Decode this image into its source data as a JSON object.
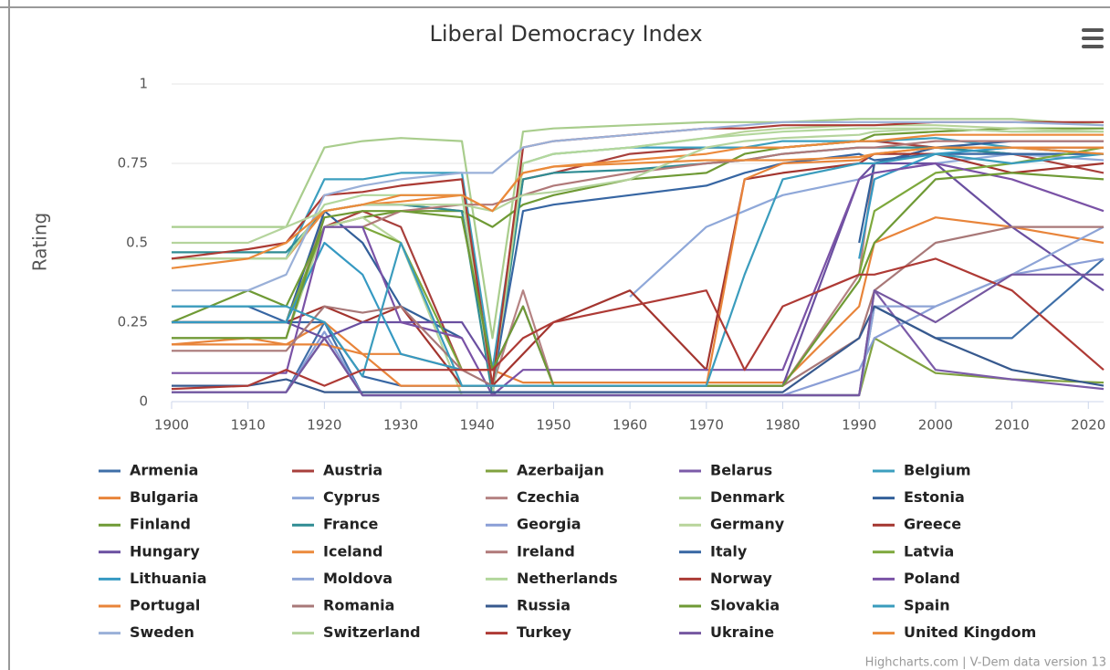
{
  "chart_data": {
    "type": "line",
    "title": "Liberal Democracy Index",
    "y_label": "Rating",
    "credits": "Highcharts.com | V-Dem data version 13",
    "x": [
      1900,
      1910,
      1915,
      1920,
      1925,
      1930,
      1938,
      1942,
      1946,
      1950,
      1960,
      1970,
      1975,
      1980,
      1990,
      1992,
      2000,
      2010,
      2022
    ],
    "xlim": [
      1900,
      2022
    ],
    "xticks": [
      1900,
      1910,
      1920,
      1930,
      1940,
      1950,
      1960,
      1970,
      1980,
      1990,
      2000,
      2010,
      2020
    ],
    "ylim": [
      0,
      1
    ],
    "yticks": [
      0,
      0.25,
      0.5,
      0.75,
      1
    ],
    "grid": true,
    "legend": "bottom",
    "series": [
      {
        "name": "Armenia",
        "color": "#3f6fa8",
        "values": [
          0.03,
          0.03,
          0.03,
          0.25,
          0.02,
          0.02,
          0.02,
          0.02,
          0.02,
          0.02,
          0.02,
          0.02,
          0.02,
          0.02,
          0.02,
          0.3,
          0.2,
          0.2,
          0.45
        ]
      },
      {
        "name": "Austria",
        "color": "#a8403c",
        "values": [
          0.25,
          0.25,
          0.25,
          0.55,
          0.6,
          0.55,
          0.1,
          0.1,
          0.7,
          0.72,
          0.78,
          0.8,
          0.8,
          0.8,
          0.82,
          0.82,
          0.8,
          0.78,
          0.72
        ]
      },
      {
        "name": "Azerbaijan",
        "color": "#80a23f",
        "values": [
          0.03,
          0.03,
          0.03,
          0.2,
          0.02,
          0.02,
          0.02,
          0.02,
          0.02,
          0.02,
          0.02,
          0.02,
          0.02,
          0.02,
          0.02,
          0.2,
          0.09,
          0.07,
          0.06
        ]
      },
      {
        "name": "Belarus",
        "color": "#7b5ba8",
        "values": [
          0.03,
          0.03,
          0.03,
          0.2,
          0.02,
          0.02,
          0.02,
          0.02,
          0.02,
          0.02,
          0.02,
          0.02,
          0.02,
          0.02,
          0.02,
          0.35,
          0.1,
          0.07,
          0.04
        ]
      },
      {
        "name": "Belgium",
        "color": "#3c9fbf",
        "values": [
          0.45,
          0.45,
          0.45,
          0.7,
          0.7,
          0.72,
          0.72,
          0.1,
          0.75,
          0.78,
          0.8,
          0.8,
          0.8,
          0.82,
          0.82,
          0.82,
          0.83,
          0.8,
          0.8
        ]
      },
      {
        "name": "Bulgaria",
        "color": "#e8843a",
        "values": [
          0.18,
          0.18,
          0.18,
          0.25,
          0.15,
          0.15,
          0.1,
          0.1,
          0.06,
          0.06,
          0.06,
          0.06,
          0.06,
          0.06,
          0.3,
          0.5,
          0.58,
          0.55,
          0.5
        ]
      },
      {
        "name": "Cyprus",
        "color": "#8fa8d9",
        "values": [
          null,
          null,
          null,
          null,
          null,
          null,
          null,
          null,
          null,
          null,
          0.33,
          0.55,
          0.6,
          0.65,
          0.7,
          0.72,
          0.75,
          0.78,
          0.76
        ]
      },
      {
        "name": "Czechia",
        "color": "#b58383",
        "values": [
          0.2,
          0.2,
          0.2,
          0.6,
          0.62,
          0.62,
          0.6,
          0.05,
          0.35,
          0.05,
          0.05,
          0.05,
          0.05,
          0.05,
          0.4,
          0.75,
          0.8,
          0.8,
          0.8
        ]
      },
      {
        "name": "Denmark",
        "color": "#a9cd8d",
        "values": [
          0.55,
          0.55,
          0.55,
          0.8,
          0.82,
          0.83,
          0.82,
          0.2,
          0.85,
          0.86,
          0.87,
          0.88,
          0.88,
          0.88,
          0.89,
          0.89,
          0.89,
          0.89,
          0.87
        ]
      },
      {
        "name": "Estonia",
        "color": "#33609a",
        "values": [
          0.25,
          0.25,
          0.25,
          0.6,
          0.5,
          0.3,
          0.2,
          null,
          null,
          null,
          null,
          null,
          null,
          null,
          0.5,
          0.75,
          0.8,
          0.82,
          0.82
        ]
      },
      {
        "name": "Finland",
        "color": "#6f9a35",
        "values": [
          0.25,
          0.35,
          0.3,
          0.55,
          0.58,
          0.6,
          0.6,
          0.55,
          0.62,
          0.65,
          0.7,
          0.72,
          0.78,
          0.8,
          0.82,
          0.84,
          0.85,
          0.86,
          0.86
        ]
      },
      {
        "name": "France",
        "color": "#2f8c93",
        "values": [
          0.47,
          0.47,
          0.47,
          0.6,
          0.62,
          0.62,
          0.6,
          0.02,
          0.7,
          0.72,
          0.73,
          0.75,
          0.76,
          0.78,
          0.8,
          0.8,
          0.8,
          0.78,
          0.78
        ]
      },
      {
        "name": "Georgia",
        "color": "#8a9ed6",
        "values": [
          0.03,
          0.03,
          0.03,
          0.22,
          0.02,
          0.02,
          0.02,
          0.02,
          0.02,
          0.02,
          0.02,
          0.02,
          0.02,
          0.02,
          0.1,
          0.2,
          0.3,
          0.4,
          0.45
        ]
      },
      {
        "name": "Germany",
        "color": "#b8d49a",
        "values": [
          0.2,
          0.2,
          0.2,
          0.55,
          0.58,
          0.5,
          0.02,
          0.02,
          0.75,
          0.78,
          0.8,
          0.83,
          0.85,
          0.86,
          0.87,
          0.87,
          0.87,
          0.86,
          0.85
        ]
      },
      {
        "name": "Greece",
        "color": "#a3352f",
        "values": [
          0.25,
          0.25,
          0.25,
          0.3,
          0.25,
          0.3,
          0.05,
          0.05,
          0.15,
          0.25,
          0.35,
          0.1,
          0.7,
          0.72,
          0.75,
          0.78,
          0.78,
          0.72,
          0.75
        ]
      },
      {
        "name": "Hungary",
        "color": "#6a4fa0",
        "values": [
          0.25,
          0.25,
          0.25,
          0.2,
          0.25,
          0.25,
          0.25,
          0.1,
          0.3,
          0.05,
          0.05,
          0.05,
          0.05,
          0.05,
          0.7,
          0.75,
          0.75,
          0.55,
          0.35
        ]
      },
      {
        "name": "Iceland",
        "color": "#ec8a3c",
        "values": [
          0.45,
          0.45,
          0.45,
          0.6,
          0.62,
          0.63,
          0.65,
          0.6,
          0.72,
          0.74,
          0.76,
          0.78,
          0.8,
          0.8,
          0.82,
          0.82,
          0.84,
          0.84,
          0.84
        ]
      },
      {
        "name": "Ireland",
        "color": "#b07979",
        "values": [
          null,
          null,
          null,
          null,
          0.55,
          0.6,
          0.62,
          0.62,
          0.65,
          0.68,
          0.72,
          0.75,
          0.76,
          0.78,
          0.8,
          0.8,
          0.82,
          0.82,
          0.82
        ]
      },
      {
        "name": "Italy",
        "color": "#3766a3",
        "values": [
          0.3,
          0.3,
          0.25,
          0.25,
          0.08,
          0.05,
          0.05,
          0.05,
          0.6,
          0.62,
          0.65,
          0.68,
          0.72,
          0.75,
          0.78,
          0.76,
          0.78,
          0.78,
          0.78
        ]
      },
      {
        "name": "Latvia",
        "color": "#7da83c",
        "values": [
          0.25,
          0.25,
          0.25,
          0.55,
          0.55,
          0.5,
          0.1,
          null,
          null,
          null,
          null,
          null,
          null,
          null,
          0.4,
          0.6,
          0.72,
          0.75,
          0.8
        ]
      },
      {
        "name": "Lithuania",
        "color": "#3599c2",
        "values": [
          0.25,
          0.25,
          0.25,
          0.5,
          0.4,
          0.15,
          0.1,
          null,
          null,
          null,
          null,
          null,
          null,
          null,
          0.45,
          0.7,
          0.78,
          0.8,
          0.78
        ]
      },
      {
        "name": "Moldova",
        "color": "#8ea4d6",
        "values": [
          0.03,
          0.03,
          0.03,
          0.2,
          0.02,
          0.02,
          0.02,
          0.02,
          0.02,
          0.02,
          0.02,
          0.02,
          0.02,
          0.02,
          0.02,
          0.3,
          0.3,
          0.4,
          0.55
        ]
      },
      {
        "name": "Netherlands",
        "color": "#b2d79c",
        "values": [
          0.45,
          0.45,
          0.45,
          0.62,
          0.65,
          0.65,
          0.65,
          0.05,
          0.75,
          0.78,
          0.8,
          0.83,
          0.84,
          0.85,
          0.86,
          0.86,
          0.86,
          0.85,
          0.85
        ]
      },
      {
        "name": "Norway",
        "color": "#ab3b35",
        "values": [
          0.45,
          0.48,
          0.5,
          0.65,
          0.66,
          0.68,
          0.7,
          0.05,
          0.8,
          0.82,
          0.84,
          0.86,
          0.86,
          0.87,
          0.87,
          0.87,
          0.88,
          0.88,
          0.88
        ]
      },
      {
        "name": "Poland",
        "color": "#7a52a6",
        "values": [
          0.09,
          0.09,
          0.09,
          0.55,
          0.55,
          0.25,
          0.2,
          0.02,
          0.1,
          0.1,
          0.1,
          0.1,
          0.1,
          0.1,
          0.7,
          0.72,
          0.75,
          0.7,
          0.6
        ]
      },
      {
        "name": "Portugal",
        "color": "#e8843a",
        "values": [
          0.18,
          0.2,
          0.18,
          0.18,
          0.15,
          0.05,
          0.05,
          0.05,
          0.05,
          0.05,
          0.05,
          0.05,
          0.7,
          0.75,
          0.76,
          0.78,
          0.8,
          0.8,
          0.8
        ]
      },
      {
        "name": "Romania",
        "color": "#a87878",
        "values": [
          0.16,
          0.16,
          0.16,
          0.3,
          0.28,
          0.3,
          0.1,
          0.05,
          0.05,
          0.05,
          0.05,
          0.05,
          0.05,
          0.05,
          0.2,
          0.35,
          0.5,
          0.55,
          0.55
        ]
      },
      {
        "name": "Russia",
        "color": "#37598e",
        "values": [
          0.05,
          0.05,
          0.07,
          0.03,
          0.03,
          0.03,
          0.03,
          0.03,
          0.03,
          0.03,
          0.03,
          0.03,
          0.03,
          0.03,
          0.2,
          0.3,
          0.2,
          0.1,
          0.05
        ]
      },
      {
        "name": "Slovakia",
        "color": "#6f9a35",
        "values": [
          0.2,
          0.2,
          0.2,
          0.58,
          0.6,
          0.6,
          0.58,
          0.1,
          0.3,
          0.05,
          0.05,
          0.05,
          0.05,
          0.05,
          0.38,
          0.5,
          0.7,
          0.72,
          0.7
        ]
      },
      {
        "name": "Spain",
        "color": "#3a9cbd",
        "values": [
          0.3,
          0.3,
          0.3,
          0.25,
          0.08,
          0.5,
          0.05,
          0.05,
          0.05,
          0.05,
          0.05,
          0.05,
          0.4,
          0.7,
          0.75,
          0.75,
          0.78,
          0.75,
          0.78
        ]
      },
      {
        "name": "Sweden",
        "color": "#9ab0d8",
        "values": [
          0.35,
          0.35,
          0.4,
          0.65,
          0.68,
          0.7,
          0.72,
          0.72,
          0.8,
          0.82,
          0.84,
          0.86,
          0.87,
          0.88,
          0.88,
          0.88,
          0.88,
          0.88,
          0.87
        ]
      },
      {
        "name": "Switzerland",
        "color": "#b5d49d",
        "values": [
          0.5,
          0.5,
          0.55,
          0.6,
          0.62,
          0.62,
          0.62,
          0.6,
          0.65,
          0.66,
          0.7,
          0.8,
          0.82,
          0.83,
          0.84,
          0.85,
          0.86,
          0.85,
          0.85
        ]
      },
      {
        "name": "Turkey",
        "color": "#ae3a35",
        "values": [
          0.04,
          0.05,
          0.1,
          0.05,
          0.1,
          0.1,
          0.1,
          0.1,
          0.2,
          0.25,
          0.3,
          0.35,
          0.1,
          0.3,
          0.4,
          0.4,
          0.45,
          0.35,
          0.1
        ]
      },
      {
        "name": "Ukraine",
        "color": "#7557a0",
        "values": [
          0.03,
          0.03,
          0.03,
          0.2,
          0.02,
          0.02,
          0.02,
          0.02,
          0.02,
          0.02,
          0.02,
          0.02,
          0.02,
          0.02,
          0.02,
          0.35,
          0.25,
          0.4,
          0.4
        ]
      },
      {
        "name": "United Kingdom",
        "color": "#ea8a3a",
        "values": [
          0.42,
          0.45,
          0.5,
          0.6,
          0.62,
          0.65,
          0.65,
          0.6,
          0.72,
          0.74,
          0.75,
          0.76,
          0.76,
          0.76,
          0.77,
          0.78,
          0.8,
          0.8,
          0.78
        ]
      }
    ]
  }
}
